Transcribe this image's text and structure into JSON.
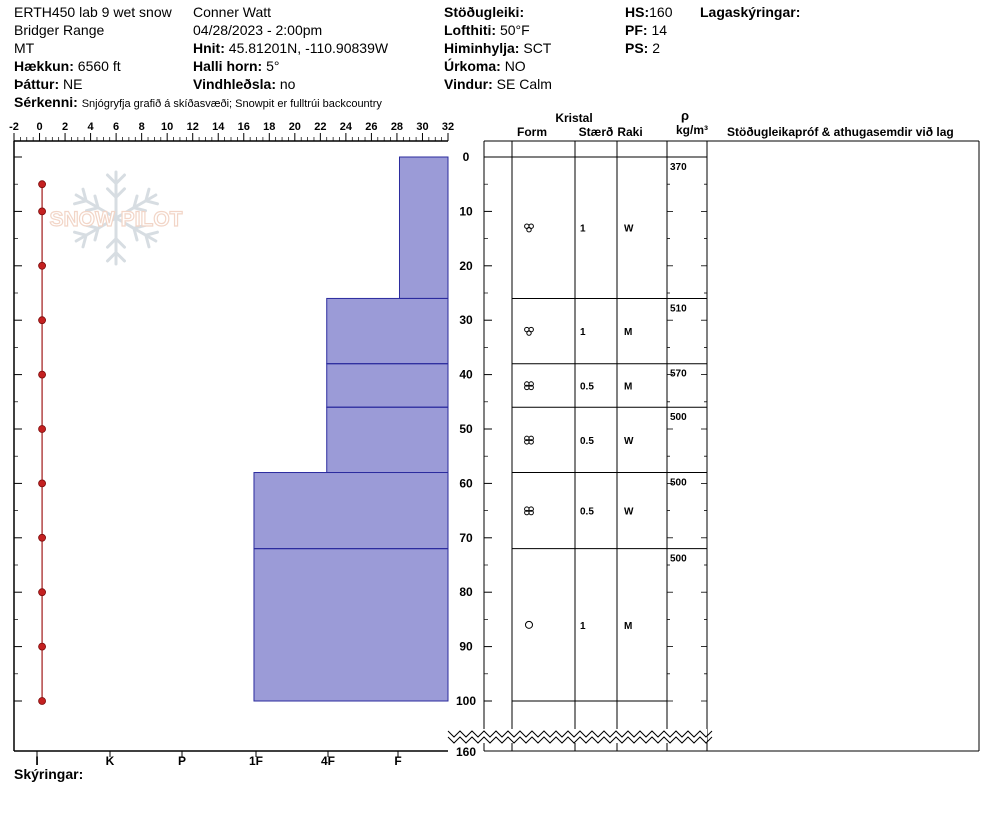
{
  "header": {
    "col1": {
      "pit_name": "ERTH450 lab 9 wet snow",
      "range": "Bridger Range",
      "state": "MT",
      "elevation_label": "Hækkun:",
      "elevation_value": "6560 ft",
      "aspect_label": "Þáttur:",
      "aspect_value": "NE",
      "features_label": "Sérkenni:",
      "features_value": "Snjógryfja grafið á skíðasvæði; Snowpit er fulltrúi backcountry"
    },
    "col2": {
      "observer": "Conner Watt",
      "datetime": "04/28/2023 - 2:00pm",
      "coords_label": "Hnit:",
      "coords_value": "45.81201N, -110.90839W",
      "slope_label": "Halli horn:",
      "slope_value": "5°",
      "wind_loading_label": "Vindhleðsla:",
      "wind_loading_value": "no"
    },
    "col3": {
      "stability_label": "Stöðugleiki:",
      "air_temp_label": "Lofthiti:",
      "air_temp_value": "50°F",
      "sky_label": "Himinhylja:",
      "sky_value": "SCT",
      "precip_label": "Úrkoma:",
      "precip_value": "NO",
      "wind_label": "Vindur:",
      "wind_value": "SE Calm"
    },
    "col4": {
      "hs_label": "HS:",
      "hs_value": "160",
      "pf_label": "PF:",
      "pf_value": "14",
      "ps_label": "PS:",
      "ps_value": "2"
    },
    "layers_title": "Lagaskýringar:"
  },
  "logo_text": "SNOW PILOT",
  "footer": {
    "notes_label": "Skýringar:"
  },
  "table": {
    "crystal_header": "Kristal",
    "form_header": "Form",
    "size_header": "Stærð",
    "moisture_header": "Raki",
    "density_symbol": "ρ",
    "density_unit": "kg/m³",
    "comments_header": "Stöðugleikapróf & athugasemdir við lag"
  },
  "chart_data": {
    "type": "bar",
    "temp_axis": {
      "ticks": [
        "-2",
        "0",
        "2",
        "4",
        "6",
        "8",
        "10",
        "12",
        "14",
        "16",
        "18",
        "20",
        "22",
        "24",
        "26",
        "28",
        "30",
        "32"
      ],
      "range": [
        -2,
        32
      ]
    },
    "depth_axis": {
      "ticks": [
        "0",
        "10",
        "20",
        "30",
        "40",
        "50",
        "60",
        "70",
        "80",
        "90",
        "100"
      ],
      "range": [
        0,
        100
      ],
      "total_label": "160"
    },
    "hardness_axis": {
      "ticks": [
        "I",
        "K",
        "P",
        "1F",
        "4F",
        "F"
      ]
    },
    "temperature_profile": {
      "depths": [
        5,
        10,
        20,
        30,
        40,
        50,
        60,
        70,
        80,
        90,
        100
      ],
      "temps": [
        0.2,
        0.2,
        0.2,
        0.2,
        0.2,
        0.2,
        0.2,
        0.2,
        0.2,
        0.2,
        0.2
      ]
    },
    "layers": [
      {
        "top": 0,
        "bottom": 26,
        "hardness_temp_scale": 28.2,
        "form": "wet-grains",
        "size": "1",
        "moisture": "W",
        "density": "370"
      },
      {
        "top": 26,
        "bottom": 38,
        "hardness_temp_scale": 22.5,
        "form": "wet-grains",
        "size": "1",
        "moisture": "M",
        "density": "510"
      },
      {
        "top": 38,
        "bottom": 46,
        "hardness_temp_scale": 22.5,
        "form": "wet-grains-clustered",
        "size": "0.5",
        "moisture": "M",
        "density": "570"
      },
      {
        "top": 46,
        "bottom": 58,
        "hardness_temp_scale": 22.5,
        "form": "wet-grains-clustered",
        "size": "0.5",
        "moisture": "W",
        "density": "500"
      },
      {
        "top": 58,
        "bottom": 72,
        "hardness_temp_scale": 16.8,
        "form": "wet-grains-clustered",
        "size": "0.5",
        "moisture": "W",
        "density": "500"
      },
      {
        "top": 72,
        "bottom": 100,
        "hardness_temp_scale": 16.8,
        "form": "rounded-grains",
        "size": "1",
        "moisture": "M",
        "density": "500"
      }
    ]
  }
}
